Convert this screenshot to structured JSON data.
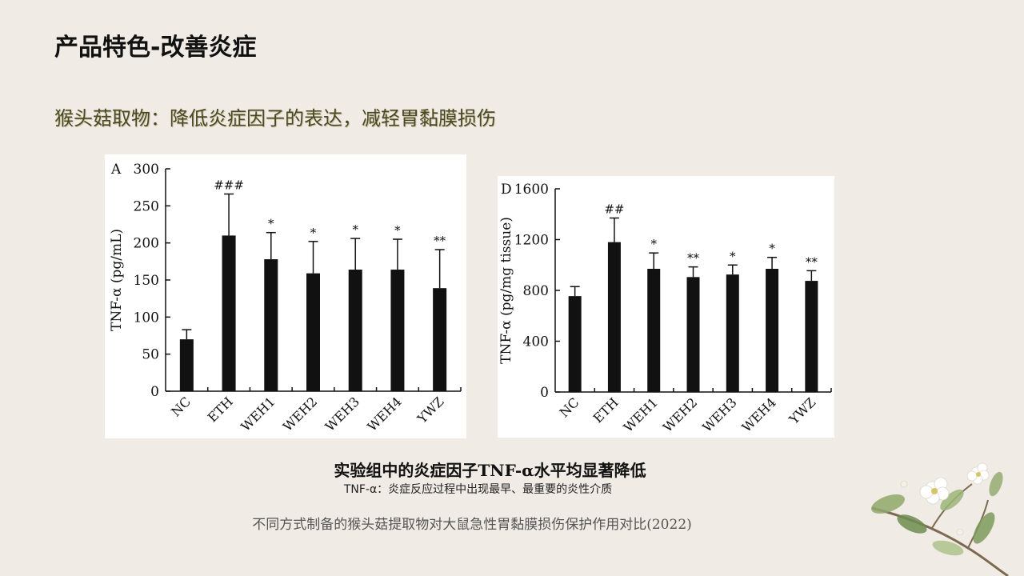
{
  "page": {
    "title": "产品特色-改善炎症",
    "subtitle": "猴头菇取物：降低炎症因子的表达，减轻胃黏膜损伤",
    "caption_main": "实验组中的炎症因子TNF-α水平均显著降低",
    "caption_note": "TNF-α：炎症反应过程中出现最早、最重要的炎性介质",
    "source": "不同方式制备的猴头菇提取物对大鼠急性胃黏膜损伤保护作用对比(2022)"
  },
  "chart_data": [
    {
      "type": "bar",
      "panel_label": "A",
      "categories": [
        "NC",
        "ETH",
        "WEH1",
        "WEH2",
        "WEH3",
        "WEH4",
        "YWZ"
      ],
      "values": [
        70,
        210,
        178,
        159,
        164,
        164,
        139
      ],
      "errors": [
        13,
        56,
        36,
        43,
        42,
        41,
        52
      ],
      "significance": [
        "",
        "###",
        "*",
        "*",
        "*",
        "*",
        "**"
      ],
      "ylabel": "TNF-α (pg/mL)",
      "xlabel": "",
      "ylim": [
        0,
        300
      ],
      "yticks": [
        0,
        50,
        100,
        150,
        200,
        250,
        300
      ],
      "bar_color": "#111111"
    },
    {
      "type": "bar",
      "panel_label": "D",
      "categories": [
        "NC",
        "ETH",
        "WEH1",
        "WEH2",
        "WEH3",
        "WEH4",
        "YWZ"
      ],
      "values": [
        755,
        1180,
        970,
        905,
        925,
        970,
        875
      ],
      "errors": [
        75,
        190,
        125,
        80,
        75,
        90,
        80
      ],
      "significance": [
        "",
        "##",
        "*",
        "**",
        "*",
        "*",
        "**"
      ],
      "ylabel": "TNF-α (pg/mg tissue)",
      "xlabel": "",
      "ylim": [
        0,
        1600
      ],
      "yticks": [
        0,
        400,
        800,
        1200,
        1600
      ],
      "bar_color": "#111111"
    }
  ]
}
